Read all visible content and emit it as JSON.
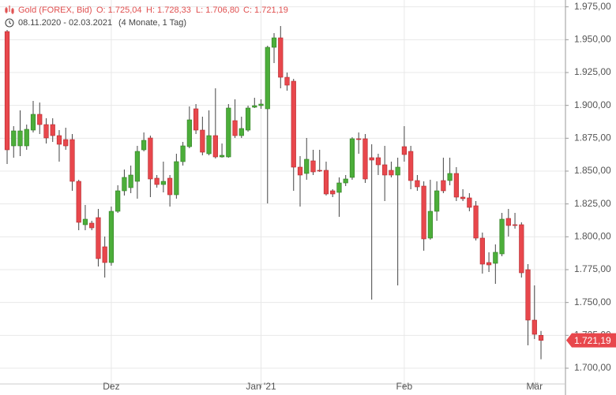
{
  "chart_data": {
    "type": "candlestick",
    "title": "Gold (FOREX, Bid)",
    "ohlc_labels": [
      "O: 1.725,04",
      "H: 1.728,33",
      "L: 1.706,80",
      "C: 1.721,19"
    ],
    "date_range": "08.11.2020 - 02.03.2021",
    "period": "(4 Monate, 1 Tag)",
    "current_price_label": "1.721,19",
    "up_color": "#4cae3a",
    "down_color": "#e8474c",
    "categories": [
      null,
      null,
      null,
      null,
      null,
      null,
      null,
      null,
      null,
      null,
      null,
      null,
      null,
      null,
      null,
      null,
      "Dez",
      null,
      null,
      null,
      null,
      null,
      null,
      null,
      null,
      null,
      null,
      null,
      null,
      null,
      null,
      null,
      null,
      null,
      null,
      null,
      null,
      null,
      null,
      "Jan '21",
      null,
      null,
      null,
      null,
      null,
      null,
      null,
      null,
      null,
      null,
      null,
      null,
      null,
      null,
      null,
      null,
      null,
      null,
      null,
      null,
      null,
      "Feb",
      null,
      null,
      null,
      null,
      null,
      null,
      null,
      null,
      null,
      null,
      null,
      null,
      null,
      null,
      null,
      null,
      null,
      null,
      null,
      "Mär",
      null
    ],
    "open": [
      1956.2,
      1869.2,
      1869.2,
      1869.2,
      1881.2,
      1893.2,
      1885.4,
      1885.4,
      1877,
      1874,
      1874,
      1842.2,
      1809.2,
      1810.4,
      1814.6,
      1792.4,
      1780.4,
      1819.4,
      1835,
      1837.4,
      1842.2,
      1866.2,
      1875.2,
      1844.6,
      1839.8,
      1844.6,
      1832,
      1857.2,
      1868.6,
      1897.4,
      1881.2,
      1863.2,
      1877,
      1860.8,
      1860.8,
      1888.4,
      1877,
      1881.2,
      1898.6,
      1899.8,
      1897.4,
      1944.2,
      1951.4,
      1921.4,
      1918.4,
      1853,
      1848.2,
      1857.8,
      1850.6,
      1850.6,
      1835,
      1833.8,
      1841,
      1845.2,
      1874.6,
      1874.6,
      1860.2,
      1860.2,
      1854.8,
      1850.6,
      1847,
      1868.6,
      1865,
      1842.8,
      1838.6,
      1799,
      1819.4,
      1842.8,
      1842.8,
      1848.2,
      1830.2,
      1829.6,
      1823.6,
      1799,
      1780.4,
      1779.8,
      1787,
      1814,
      1809.2,
      1809.2,
      1775,
      1736.6,
      1725.04
    ],
    "high": [
      1957.4,
      1884.2,
      1896.2,
      1885.4,
      1903.4,
      1902.2,
      1890.2,
      1890.2,
      1881.2,
      1883,
      1878.2,
      1843.4,
      1824.2,
      1812.2,
      1821.2,
      1800.2,
      1823,
      1839.2,
      1851.2,
      1854.2,
      1869.2,
      1879.4,
      1877,
      1847,
      1857.2,
      1847,
      1863.2,
      1872.2,
      1899.2,
      1901,
      1891.4,
      1896.2,
      1913,
      1871,
      1901,
      1904.6,
      1891.4,
      1899.8,
      1905.8,
      1904.6,
      1945.4,
      1955,
      1960.4,
      1925,
      1920.2,
      1861.4,
      1875.2,
      1866.2,
      1866.2,
      1857.2,
      1836.2,
      1845.2,
      1847,
      1875.8,
      1879.4,
      1878.2,
      1870.4,
      1863.2,
      1869.2,
      1857.2,
      1860.2,
      1884.2,
      1869.2,
      1847,
      1842.2,
      1843.4,
      1842.2,
      1860.2,
      1860.2,
      1853,
      1836.2,
      1833.2,
      1827.2,
      1803.2,
      1788.2,
      1794.2,
      1818.2,
      1821.2,
      1818.2,
      1811,
      1779.2,
      1763,
      1728.33
    ],
    "low": [
      1855.4,
      1860.2,
      1861.4,
      1866.2,
      1879.4,
      1878.2,
      1871,
      1872.2,
      1857.2,
      1866.2,
      1835,
      1805,
      1805,
      1805,
      1777.4,
      1769,
      1778,
      1818.2,
      1831.4,
      1833.2,
      1829,
      1865,
      1830.2,
      1837.4,
      1833.8,
      1823,
      1829,
      1854.2,
      1867.4,
      1878.2,
      1862,
      1862,
      1859.6,
      1860.2,
      1860.2,
      1875.2,
      1875.2,
      1880,
      1898,
      1897.4,
      1825.4,
      1932.2,
      1913,
      1911.2,
      1835,
      1823,
      1843.4,
      1847,
      1849.4,
      1831.4,
      1830.2,
      1815.2,
      1838.6,
      1843.4,
      1863.2,
      1841,
      1752.2,
      1847,
      1827.2,
      1845.2,
      1763,
      1857.2,
      1836.2,
      1835,
      1789.4,
      1797.8,
      1812.2,
      1833.2,
      1839.2,
      1827.2,
      1827.2,
      1819.4,
      1797.2,
      1772,
      1773.2,
      1764.2,
      1785.2,
      1800.2,
      1806.2,
      1769,
      1717.4,
      1722.2,
      1706.8
    ],
    "close": [
      1866.2,
      1880.6,
      1880.6,
      1881.8,
      1893.2,
      1885.4,
      1875.2,
      1877,
      1870.4,
      1869.2,
      1842.2,
      1811,
      1813.4,
      1806.8,
      1783.4,
      1780.4,
      1819.4,
      1835,
      1845.2,
      1847,
      1865,
      1873.4,
      1844,
      1839.8,
      1842.2,
      1832,
      1857.2,
      1869.2,
      1889,
      1881.2,
      1864.4,
      1877,
      1860.8,
      1862,
      1898,
      1877,
      1882.4,
      1898,
      1899.8,
      1901,
      1944.2,
      1951.4,
      1921.4,
      1915.4,
      1853,
      1847,
      1859,
      1849.4,
      1850,
      1832.6,
      1832.6,
      1841,
      1844,
      1874.6,
      1874,
      1844,
      1858.4,
      1854.8,
      1847,
      1847,
      1853,
      1862.6,
      1842.8,
      1838,
      1798.4,
      1819.4,
      1835,
      1835,
      1848.2,
      1830.2,
      1829,
      1822.4,
      1799,
      1779.2,
      1778.6,
      1788.2,
      1813.4,
      1808.6,
      1808.6,
      1772.6,
      1736.6,
      1725.8,
      1721.19
    ],
    "ylim": [
      1679.6,
      1980.2
    ],
    "yticks": [
      {
        "value": 1700,
        "label": "1.700,00"
      },
      {
        "value": 1725,
        "label": "1.725,00"
      },
      {
        "value": 1750,
        "label": "1.750,00"
      },
      {
        "value": 1775,
        "label": "1.775,00"
      },
      {
        "value": 1800,
        "label": "1.800,00"
      },
      {
        "value": 1825,
        "label": "1.825,00"
      },
      {
        "value": 1850,
        "label": "1.850,00"
      },
      {
        "value": 1875,
        "label": "1.875,00"
      },
      {
        "value": 1900,
        "label": "1.900,00"
      },
      {
        "value": 1925,
        "label": "1.925,00"
      },
      {
        "value": 1950,
        "label": "1.950,00"
      },
      {
        "value": 1975,
        "label": "1.975,00"
      }
    ],
    "grid": true
  }
}
